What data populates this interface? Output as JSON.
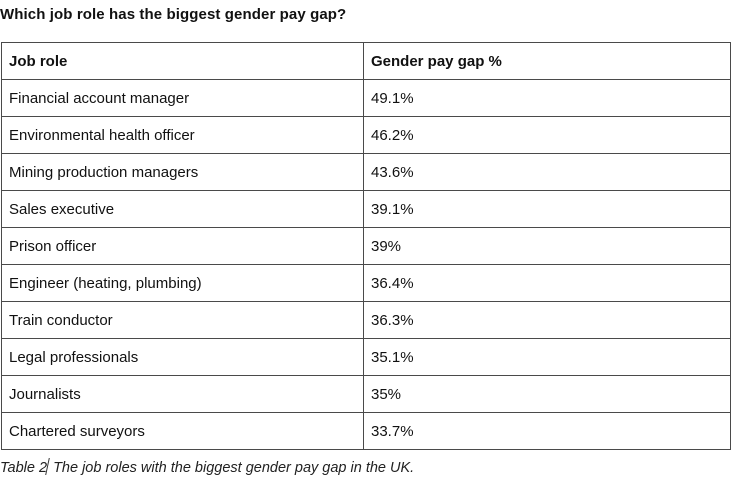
{
  "title": "Which job role has the biggest gender pay gap?",
  "table": {
    "headers": [
      "Job role",
      "Gender pay gap %"
    ],
    "rows": [
      [
        "Financial account manager",
        "49.1%"
      ],
      [
        "Environmental health officer",
        "46.2%"
      ],
      [
        "Mining production managers",
        "43.6%"
      ],
      [
        "Sales executive",
        "39.1%"
      ],
      [
        "Prison officer",
        "39%"
      ],
      [
        "Engineer (heating, plumbing)",
        "36.4%"
      ],
      [
        "Train conductor",
        "36.3%"
      ],
      [
        "Legal professionals",
        "35.1%"
      ],
      [
        "Journalists",
        "35%"
      ],
      [
        "Chartered surveyors",
        "33.7%"
      ]
    ]
  },
  "caption": {
    "label": "Table 2",
    "text": " The job roles with the biggest gender pay gap in the UK."
  }
}
